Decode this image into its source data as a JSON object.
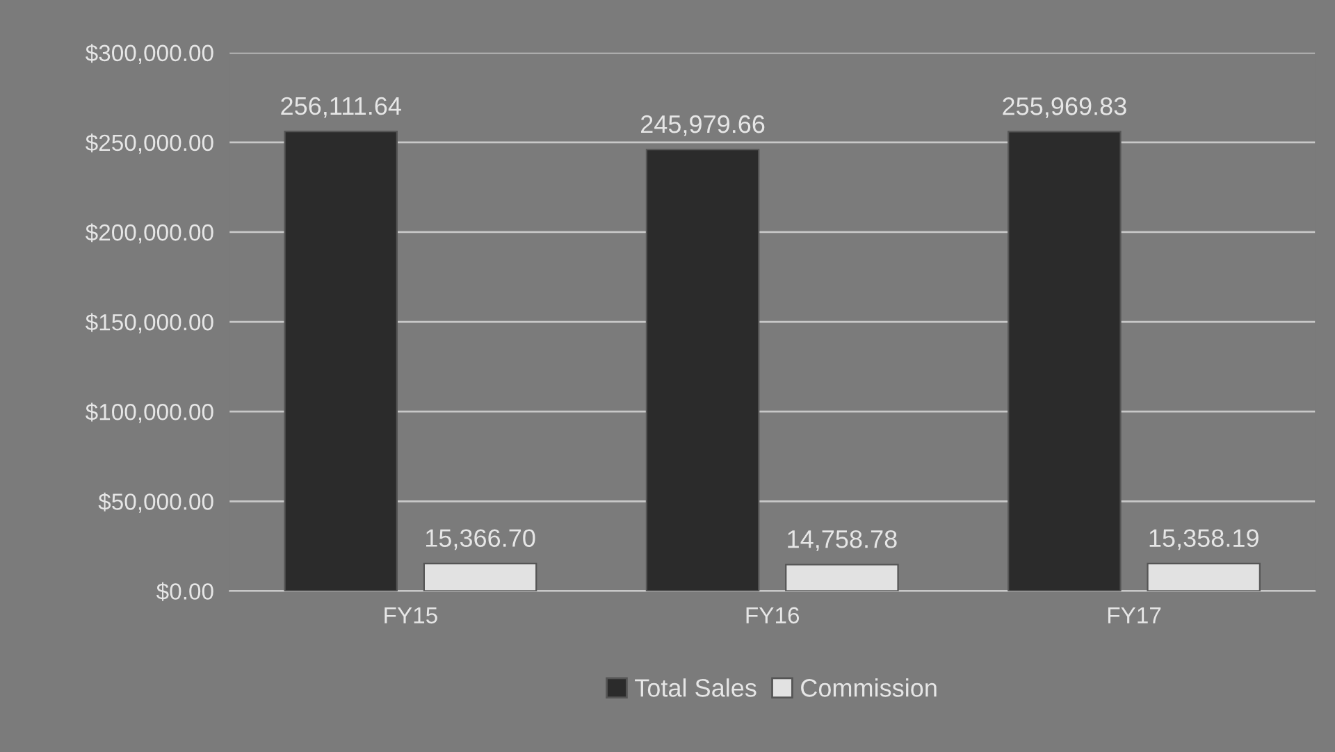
{
  "chart_data": {
    "type": "bar",
    "categories": [
      "FY15",
      "FY16",
      "FY17"
    ],
    "series": [
      {
        "name": "Total Sales",
        "color": "#2b2b2b",
        "values": [
          256111.64,
          245979.66,
          255969.83
        ],
        "value_labels": [
          "256,111.64",
          "245,979.66",
          "255,969.83"
        ]
      },
      {
        "name": "Commission",
        "color": "#e2e2e2",
        "values": [
          15366.7,
          14758.78,
          15358.19
        ],
        "value_labels": [
          "15,366.70",
          "14,758.78",
          "15,358.19"
        ]
      }
    ],
    "ylim": [
      0,
      300000
    ],
    "yticks": [
      {
        "value": 0,
        "label": "$0.00"
      },
      {
        "value": 50000,
        "label": "$50,000.00"
      },
      {
        "value": 100000,
        "label": "$100,000.00"
      },
      {
        "value": 150000,
        "label": "$150,000.00"
      },
      {
        "value": 200000,
        "label": "$200,000.00"
      },
      {
        "value": 250000,
        "label": "$250,000.00"
      },
      {
        "value": 300000,
        "label": "$300,000.00"
      }
    ],
    "grid": "y",
    "legend": "bottom"
  }
}
